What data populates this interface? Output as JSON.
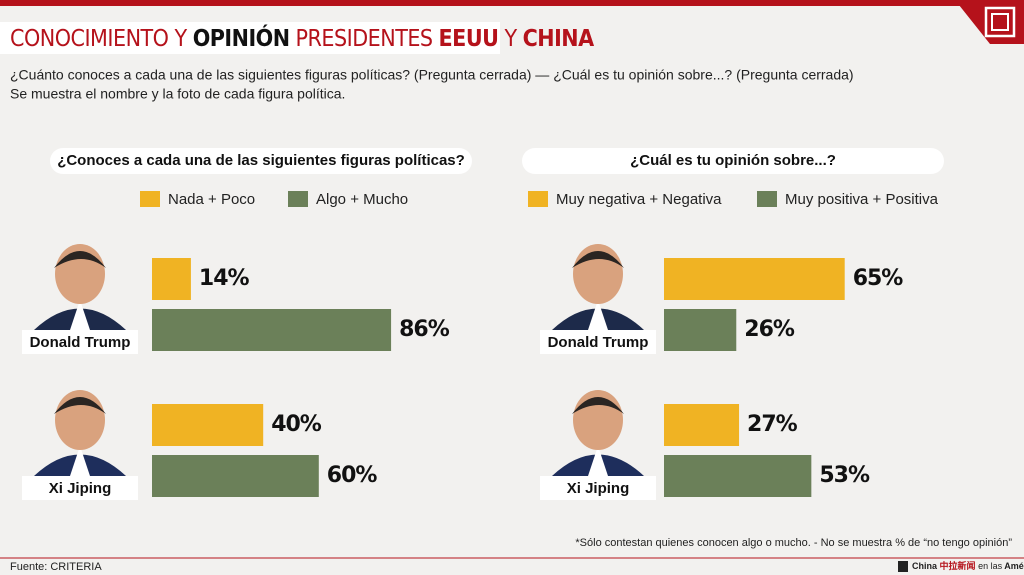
{
  "header": {
    "title_parts": [
      {
        "text": "CONOCIMIENTO Y",
        "color": "#b5121b",
        "bold": false
      },
      {
        "text": "OPINIÓN",
        "color": "#111111",
        "bold": true
      },
      {
        "text": "PRESIDENTES",
        "color": "#b5121b",
        "bold": false
      },
      {
        "text": "EEUU",
        "color": "#b5121b",
        "bold": true
      },
      {
        "text": "Y",
        "color": "#b5121b",
        "bold": false
      },
      {
        "text": "CHINA",
        "color": "#b5121b",
        "bold": true
      }
    ],
    "subtitle": "¿Cuánto conoces a cada una de las siguientes figuras políticas? (Pregunta cerrada) — ¿Cuál es tu opinión sobre...? (Pregunta cerrada)",
    "note": "Se muestra el nombre y la foto de cada figura política."
  },
  "chart_data": [
    {
      "type": "bar",
      "orientation": "horizontal",
      "title": "¿Conoces a cada una de las siguientes figuras políticas?",
      "categories": [
        "Donald Trump",
        "Xi Jiping"
      ],
      "series": [
        {
          "name": "Nada + Poco",
          "color": "#f0b323",
          "values": [
            14,
            40
          ],
          "value_labels": [
            "14%",
            "40%"
          ]
        },
        {
          "name": "Algo + Mucho",
          "color": "#6b8059",
          "values": [
            86,
            60
          ],
          "value_labels": [
            "86%",
            "60%"
          ]
        }
      ]
    },
    {
      "type": "bar",
      "orientation": "horizontal",
      "title": "¿Cuál es tu opinión sobre...?",
      "categories": [
        "Donald Trump",
        "Xi Jiping"
      ],
      "series": [
        {
          "name": "Muy negativa + Negativa",
          "color": "#f0b323",
          "values": [
            65,
            27
          ],
          "value_labels": [
            "65%",
            "27%"
          ]
        },
        {
          "name": "Muy positiva + Positiva",
          "color": "#6b8059",
          "values": [
            26,
            53
          ],
          "value_labels": [
            "26%",
            "53%"
          ]
        }
      ]
    }
  ],
  "footer": {
    "footnote": "*Sólo contestan quienes conocen algo o mucho. - No se muestra % de “no tengo opinión”",
    "source": "Fuente: CRITERIA",
    "logo": [
      "China",
      "中拉新闻",
      "en las",
      "Américas"
    ]
  }
}
